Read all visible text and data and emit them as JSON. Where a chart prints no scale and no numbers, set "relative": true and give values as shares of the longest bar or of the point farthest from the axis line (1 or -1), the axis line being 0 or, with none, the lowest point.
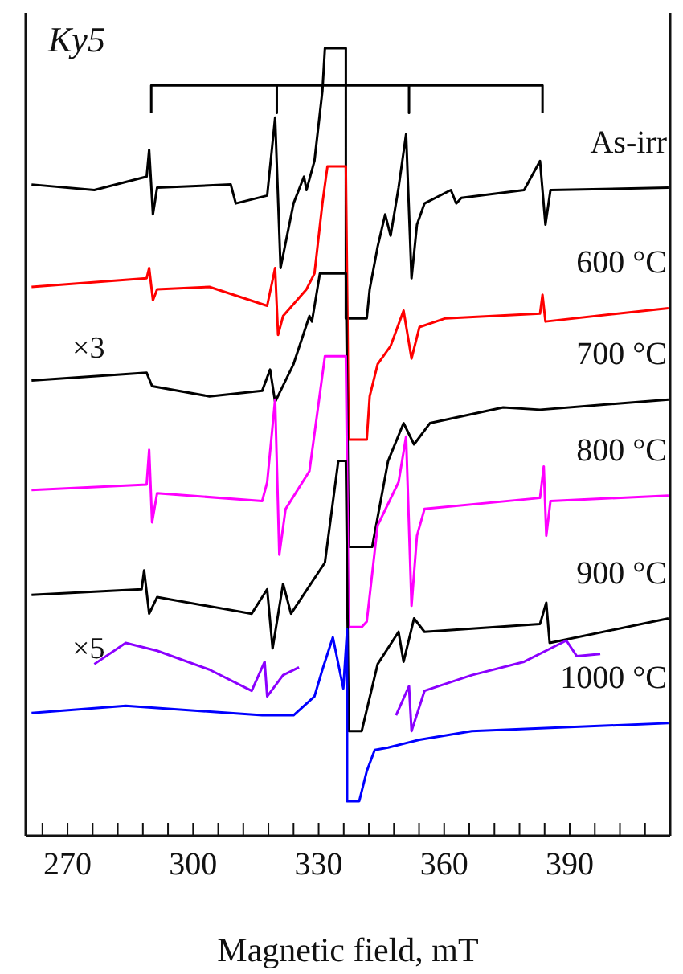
{
  "chart_data": {
    "type": "line",
    "title": "Ky5",
    "xlabel": "Magnetic field, mT",
    "relative": true,
    "legend": false,
    "grid": false,
    "tick_labels": "x",
    "xlim": [
      260,
      414
    ],
    "xticks": [
      {
        "value": 264,
        "label": null
      },
      270,
      {
        "value": 276,
        "label": null
      },
      {
        "value": 282,
        "label": null
      },
      {
        "value": 288,
        "label": null
      },
      {
        "value": 294,
        "label": null
      },
      300,
      {
        "value": 306,
        "label": null
      },
      {
        "value": 312,
        "label": null
      },
      {
        "value": 318,
        "label": null
      },
      {
        "value": 324,
        "label": null
      },
      330,
      {
        "value": 336,
        "label": null
      },
      {
        "value": 342,
        "label": null
      },
      {
        "value": 348,
        "label": null
      },
      {
        "value": 354,
        "label": null
      },
      360,
      {
        "value": 366,
        "label": null
      },
      {
        "value": 372,
        "label": null
      },
      {
        "value": 378,
        "label": null
      },
      {
        "value": 384,
        "label": null
      },
      390,
      {
        "value": 396,
        "label": null
      },
      {
        "value": 402,
        "label": null
      },
      {
        "value": 408,
        "label": null
      }
    ],
    "annotations": [
      "×3",
      "×5"
    ],
    "series": [
      {
        "name": "As-irr",
        "color": "#000000",
        "x": [
          261.4,
          276.4,
          288.9,
          289.5,
          290.4,
          291.4,
          309.0,
          310.2,
          317.7,
          319.6,
          320.9,
          324.0,
          326.5,
          327.1,
          329.0,
          330.9,
          331.5,
          336.5,
          336.5,
          341.5,
          342.2,
          344.1,
          345.9,
          347.2,
          349.1,
          350.9,
          352.2,
          353.5,
          355.3,
          361.6,
          362.9,
          364.1,
          379.1,
          382.9,
          384.2,
          385.4,
          413.6
        ],
        "values": [
          0.827,
          0.82,
          0.837,
          0.871,
          0.789,
          0.823,
          0.827,
          0.803,
          0.813,
          0.912,
          0.721,
          0.803,
          0.837,
          0.82,
          0.857,
          0.946,
          1.0,
          1.0,
          0.657,
          0.657,
          0.694,
          0.748,
          0.789,
          0.762,
          0.823,
          0.891,
          0.708,
          0.776,
          0.803,
          0.82,
          0.803,
          0.81,
          0.82,
          0.857,
          0.776,
          0.82,
          0.823
        ]
      },
      {
        "name": "600 °C",
        "color": "#ff0000",
        "x": [
          261.4,
          288.9,
          289.5,
          290.4,
          291.4,
          303.9,
          317.7,
          319.6,
          320.3,
          321.5,
          327.1,
          329.0,
          330.9,
          332.1,
          336.5,
          337.2,
          341.5,
          342.2,
          344.1,
          347.2,
          350.3,
          352.2,
          354.1,
          360.3,
          382.9,
          383.5,
          384.2,
          413.6
        ],
        "values": [
          0.697,
          0.708,
          0.721,
          0.68,
          0.694,
          0.697,
          0.673,
          0.721,
          0.636,
          0.66,
          0.694,
          0.714,
          0.803,
          0.85,
          0.85,
          0.503,
          0.503,
          0.558,
          0.599,
          0.622,
          0.667,
          0.606,
          0.646,
          0.657,
          0.663,
          0.687,
          0.653,
          0.67
        ]
      },
      {
        "name": "700 °C",
        "color": "#000000",
        "x": [
          261.4,
          288.9,
          290.2,
          303.9,
          316.5,
          318.4,
          319.6,
          324.0,
          327.8,
          328.4,
          330.3,
          336.5,
          337.2,
          342.8,
          346.6,
          350.3,
          352.8,
          356.6,
          374.1,
          382.9,
          413.6
        ],
        "values": [
          0.578,
          0.588,
          0.571,
          0.558,
          0.565,
          0.592,
          0.551,
          0.599,
          0.66,
          0.653,
          0.714,
          0.714,
          0.367,
          0.367,
          0.476,
          0.524,
          0.497,
          0.524,
          0.544,
          0.541,
          0.554
        ]
      },
      {
        "name": "800 °C",
        "color": "#ff00ff",
        "x": [
          261.4,
          288.9,
          289.5,
          290.2,
          291.4,
          316.5,
          317.7,
          319.6,
          320.6,
          322.1,
          327.8,
          331.5,
          336.5,
          337.2,
          340.3,
          341.5,
          344.1,
          349.1,
          350.9,
          352.2,
          353.5,
          355.3,
          382.9,
          383.8,
          384.4,
          385.4,
          413.6
        ],
        "values": [
          0.439,
          0.446,
          0.49,
          0.398,
          0.435,
          0.425,
          0.449,
          0.554,
          0.357,
          0.415,
          0.463,
          0.609,
          0.609,
          0.265,
          0.265,
          0.272,
          0.394,
          0.449,
          0.507,
          0.292,
          0.381,
          0.415,
          0.429,
          0.469,
          0.381,
          0.425,
          0.432
        ]
      },
      {
        "name": "900 °C",
        "color": "#000000",
        "x": [
          261.4,
          287.7,
          288.3,
          289.5,
          291.4,
          314.0,
          317.7,
          319.0,
          321.5,
          323.4,
          331.5,
          334.7,
          336.5,
          337.2,
          340.3,
          344.1,
          349.1,
          350.3,
          352.8,
          355.3,
          382.9,
          384.4,
          385.2,
          413.6
        ],
        "values": [
          0.306,
          0.313,
          0.337,
          0.282,
          0.303,
          0.282,
          0.313,
          0.238,
          0.32,
          0.282,
          0.347,
          0.476,
          0.476,
          0.133,
          0.133,
          0.218,
          0.259,
          0.221,
          0.276,
          0.259,
          0.269,
          0.296,
          0.245,
          0.276
        ]
      },
      {
        "color": "#8b00ff",
        "x": [
          276.4,
          283.9,
          291.4,
          303.9,
          314.0,
          317.1,
          317.7,
          321.5,
          325.3,
          336.0,
          348.5,
          351.6,
          352.2,
          355.3,
          366.6,
          379.1,
          389.2,
          391.7,
          397.3
        ],
        "values": [
          0.218,
          0.245,
          0.235,
          0.211,
          0.184,
          0.221,
          0.177,
          0.204,
          0.214,
          null,
          0.153,
          0.19,
          0.133,
          0.184,
          0.204,
          0.221,
          0.248,
          0.228,
          0.231
        ]
      },
      {
        "name": "1000 °C",
        "color": "#0000ff",
        "x": [
          261.4,
          283.9,
          316.5,
          324.0,
          329.0,
          330.9,
          333.4,
          335.9,
          336.8,
          336.8,
          339.7,
          341.5,
          343.4,
          346.6,
          354.1,
          366.6,
          413.6
        ],
        "values": [
          0.156,
          0.165,
          0.153,
          0.153,
          0.177,
          0.211,
          0.252,
          0.187,
          0.262,
          0.044,
          0.044,
          0.082,
          0.109,
          0.112,
          0.122,
          0.133,
          0.143
        ]
      },
      {
        "color": "#000000",
        "x": [
          290.0,
          290.0,
          320.0,
          320.0,
          320.0,
          351.6,
          351.6,
          351.6,
          383.5,
          383.5
        ],
        "values": [
          0.918,
          0.953,
          0.953,
          0.918,
          0.953,
          0.953,
          0.918,
          0.953,
          0.953,
          0.918
        ]
      }
    ]
  }
}
